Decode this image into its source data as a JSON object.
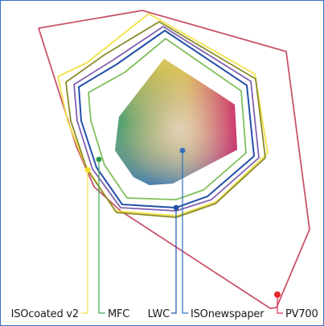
{
  "legend": {
    "isocoated": "ISOcoated v2",
    "mfc": "MFC",
    "lwc": "LWC",
    "isonewspaper": "ISOnewspaper",
    "pv700": "PV700"
  },
  "colors": {
    "pv700": "#c8546a",
    "isocoated": "#f2e24a",
    "mfc": "#3aa84e",
    "lwc": "#2450a8",
    "isonewspaper": "#7fbf5a",
    "olive": "#8a8a2a",
    "purple": "#8060b0",
    "frame": "#3b6cc0"
  }
}
